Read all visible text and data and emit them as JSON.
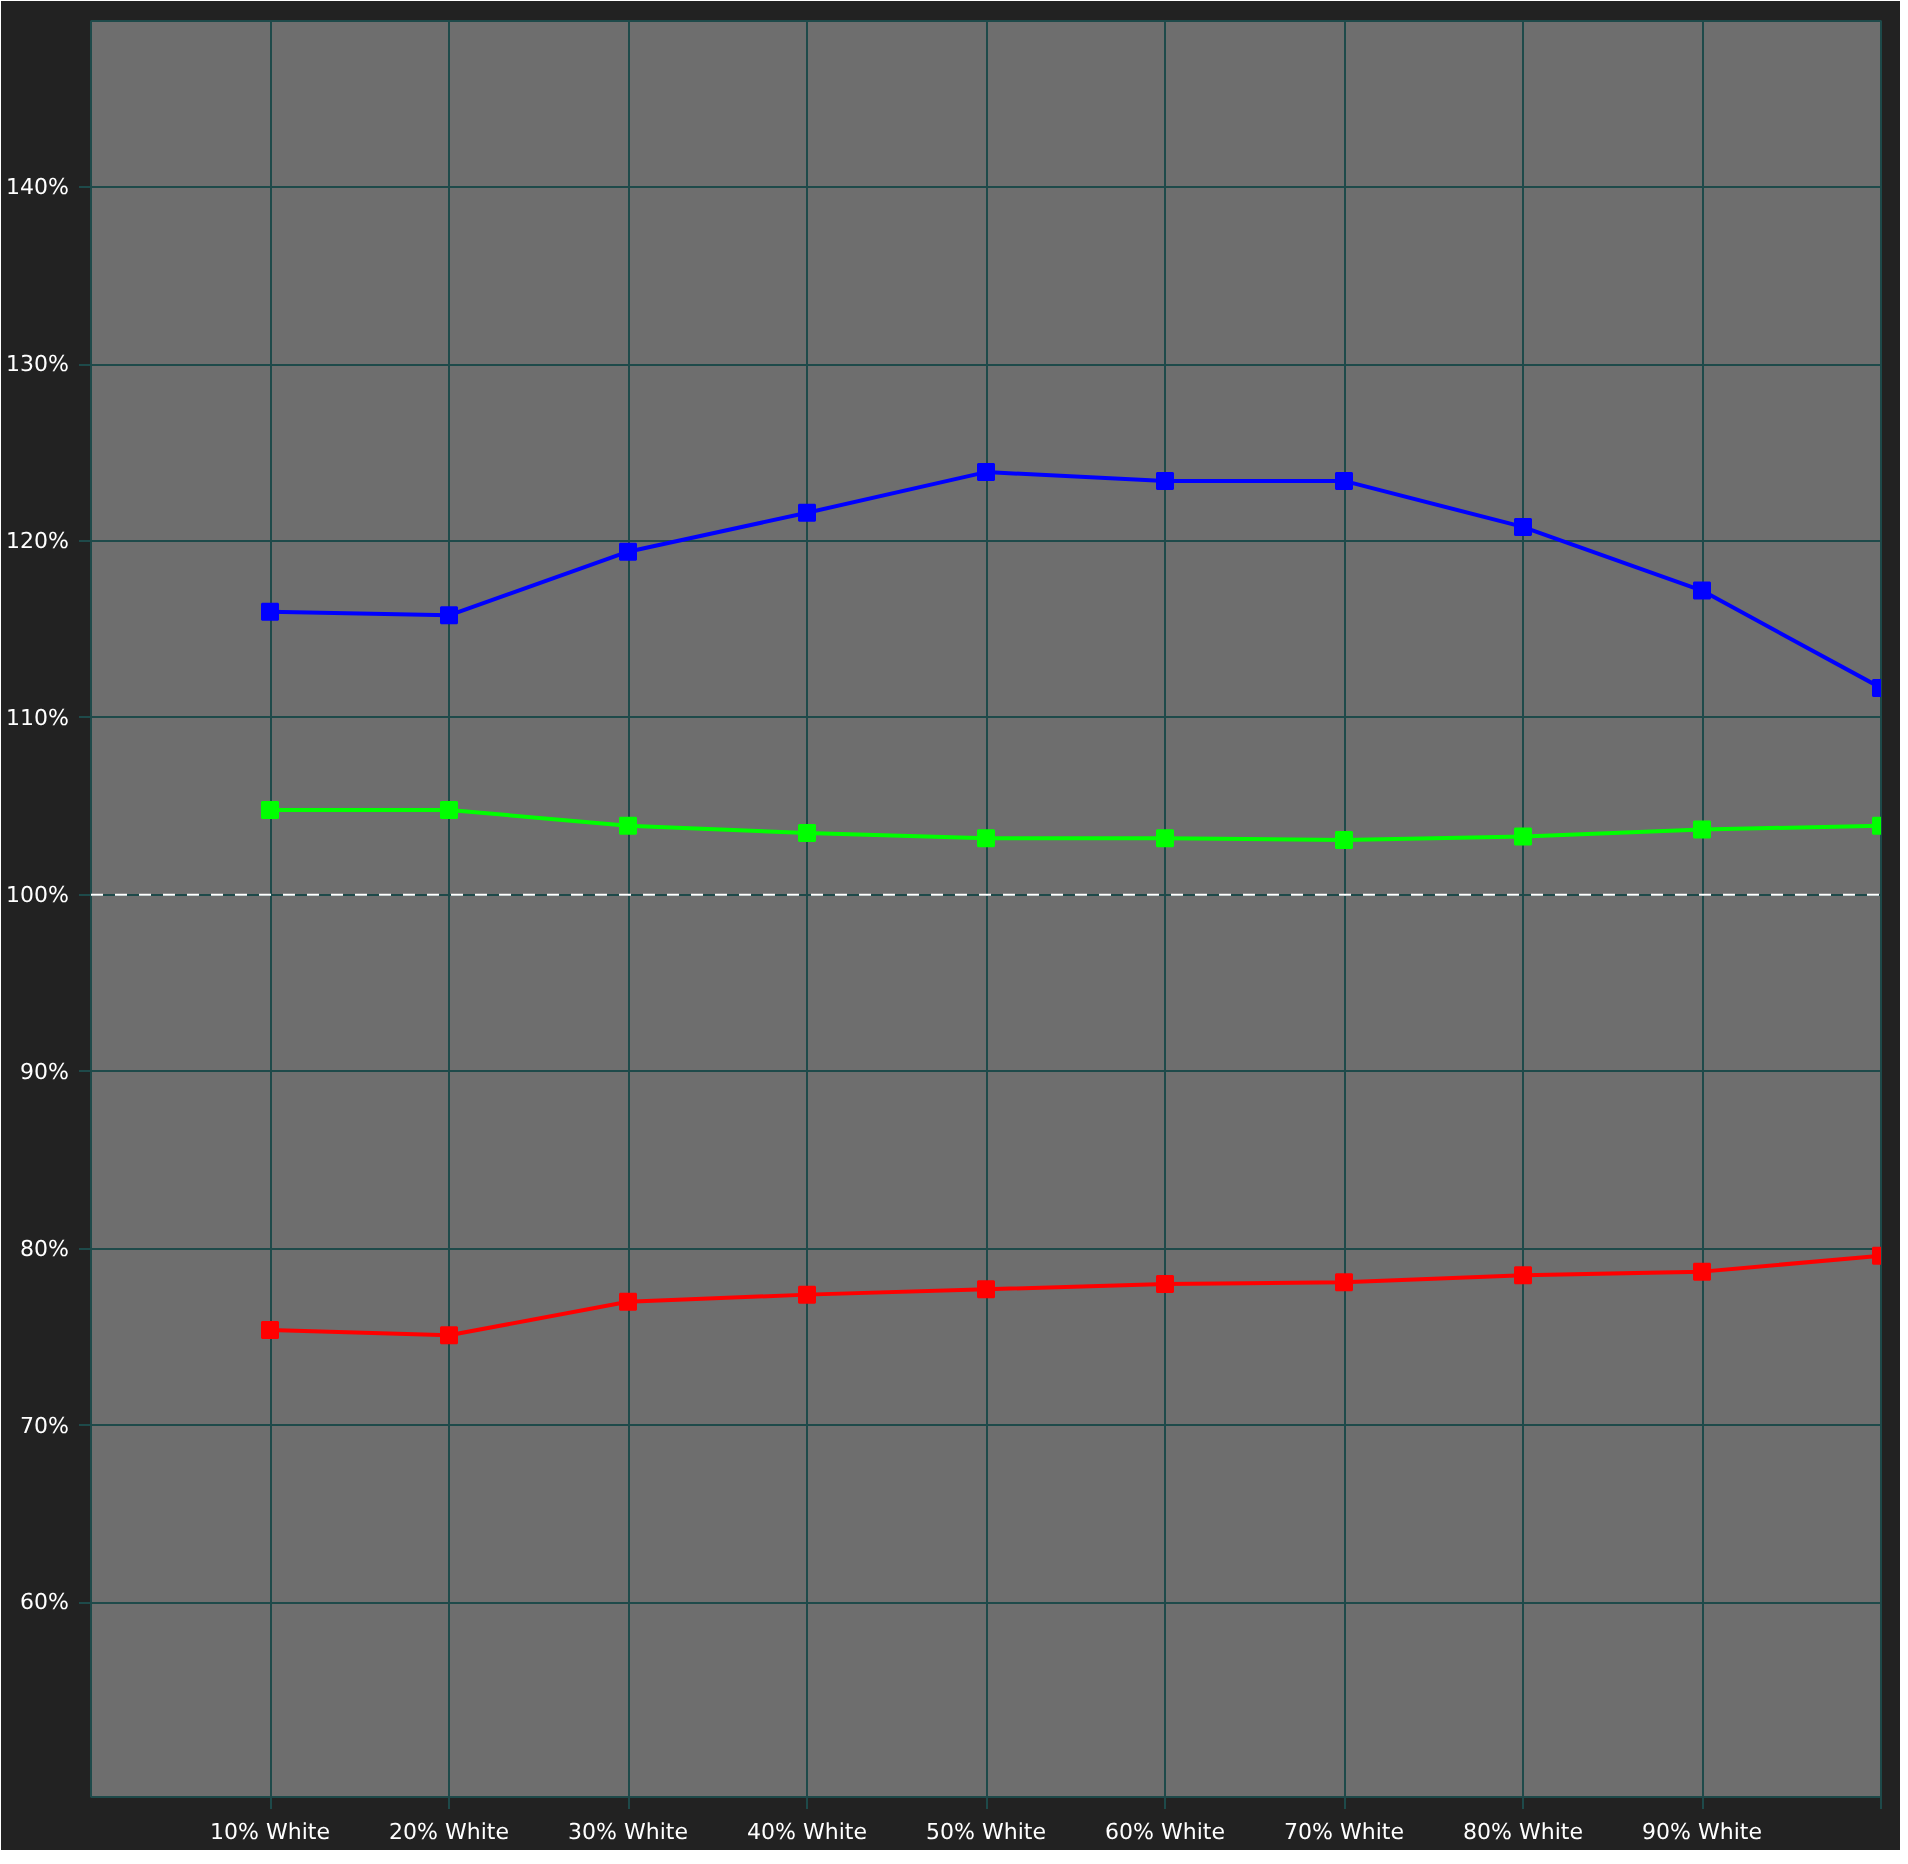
{
  "chart_data": {
    "type": "line",
    "x": [
      10,
      20,
      30,
      40,
      50,
      60,
      70,
      80,
      90,
      100
    ],
    "series": [
      {
        "color": "#0000ff",
        "values": [
          116.0,
          115.8,
          119.4,
          121.6,
          123.9,
          123.4,
          123.4,
          120.8,
          117.2,
          111.7
        ]
      },
      {
        "color": "#00ff00",
        "values": [
          104.8,
          104.8,
          103.9,
          103.5,
          103.2,
          103.2,
          103.1,
          103.3,
          103.7,
          103.9
        ]
      },
      {
        "color": "#ff0000",
        "values": [
          75.4,
          75.1,
          77.0,
          77.4,
          77.7,
          78.0,
          78.1,
          78.5,
          78.7,
          79.6
        ]
      }
    ],
    "xlim": [
      0,
      100
    ],
    "xticks": [
      {
        "value": 10,
        "label": "10% White"
      },
      {
        "value": 20,
        "label": "20% White"
      },
      {
        "value": 30,
        "label": "30% White"
      },
      {
        "value": 40,
        "label": "40% White"
      },
      {
        "value": 50,
        "label": "50% White"
      },
      {
        "value": 60,
        "label": "60% White"
      },
      {
        "value": 70,
        "label": "70% White"
      },
      {
        "value": 80,
        "label": "80% White"
      },
      {
        "value": 90,
        "label": "90% White"
      },
      {
        "value": 100,
        "label": null
      }
    ],
    "ylim": [
      49,
      149.4
    ],
    "yticks": [
      {
        "value": 60,
        "label": "60%"
      },
      {
        "value": 70,
        "label": "70%"
      },
      {
        "value": 80,
        "label": "80%"
      },
      {
        "value": 90,
        "label": "90%"
      },
      {
        "value": 100,
        "label": "100%"
      },
      {
        "value": 110,
        "label": "110%"
      },
      {
        "value": 120,
        "label": "120%"
      },
      {
        "value": 130,
        "label": "130%"
      },
      {
        "value": 140,
        "label": "140%"
      }
    ],
    "ref_lines": [
      {
        "axis": "y",
        "value": 100,
        "color": "#ffffff",
        "line_style": "dashed"
      }
    ],
    "grid": true,
    "marker": "square",
    "line_style": "solid"
  }
}
